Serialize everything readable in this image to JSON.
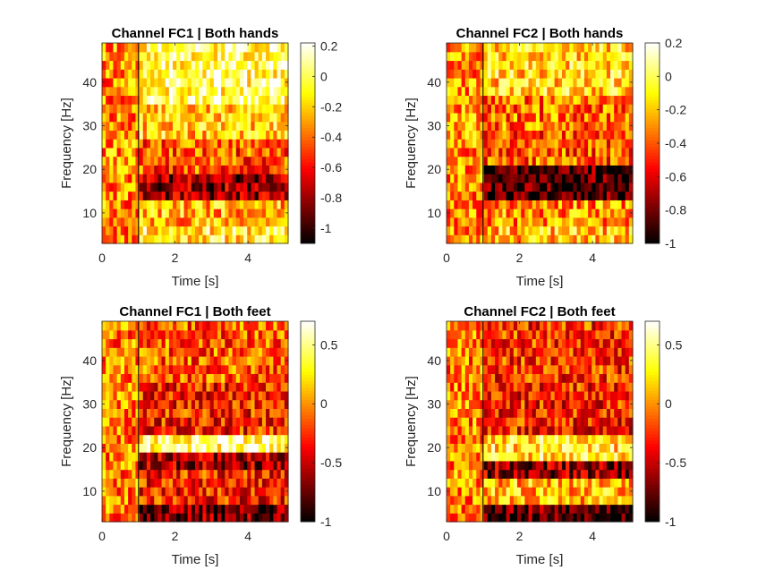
{
  "chart_data": [
    {
      "type": "heatmap",
      "title": "Channel FC1 | Both hands",
      "xlabel": "Time [s]",
      "ylabel": "Frequency [Hz]",
      "xlim": [
        0,
        5.1
      ],
      "ylim": [
        3,
        49
      ],
      "xticks": [
        0,
        2,
        4
      ],
      "yticks": [
        10,
        20,
        30,
        40
      ],
      "event_line_x": 1,
      "colormap": "hot",
      "clim": [
        -1.1,
        0.22
      ],
      "colorbar_ticks": [
        0.2,
        0,
        -0.2,
        -0.4,
        -0.6,
        -0.8,
        -1
      ],
      "bands": [
        {
          "f": [
            4,
            8
          ],
          "v": -0.1
        },
        {
          "f": [
            8,
            14
          ],
          "v": -0.25
        },
        {
          "f": [
            14,
            20
          ],
          "v": -0.8
        },
        {
          "f": [
            20,
            28
          ],
          "v": -0.45
        },
        {
          "f": [
            28,
            36
          ],
          "v": -0.2
        },
        {
          "f": [
            36,
            49
          ],
          "v": 0.0
        }
      ],
      "noise_seed": 11
    },
    {
      "type": "heatmap",
      "title": "Channel FC2 | Both hands",
      "xlabel": "Time [s]",
      "ylabel": "Frequency [Hz]",
      "xlim": [
        0,
        5.1
      ],
      "ylim": [
        3,
        49
      ],
      "xticks": [
        0,
        2,
        4
      ],
      "yticks": [
        10,
        20,
        30,
        40
      ],
      "event_line_x": 1,
      "colormap": "hot",
      "clim": [
        -1.0,
        0.2
      ],
      "colorbar_ticks": [
        0.2,
        0,
        -0.2,
        -0.4,
        -0.6,
        -0.8,
        -1
      ],
      "bands": [
        {
          "f": [
            4,
            8
          ],
          "v": -0.2
        },
        {
          "f": [
            8,
            14
          ],
          "v": -0.3
        },
        {
          "f": [
            14,
            22
          ],
          "v": -0.85
        },
        {
          "f": [
            22,
            30
          ],
          "v": -0.4
        },
        {
          "f": [
            30,
            38
          ],
          "v": -0.35
        },
        {
          "f": [
            38,
            49
          ],
          "v": -0.15
        }
      ],
      "noise_seed": 23
    },
    {
      "type": "heatmap",
      "title": "Channel FC1 | Both feet",
      "xlabel": "Time [s]",
      "ylabel": "Frequency [Hz]",
      "xlim": [
        0,
        5.1
      ],
      "ylim": [
        3,
        49
      ],
      "xticks": [
        0,
        2,
        4
      ],
      "yticks": [
        10,
        20,
        30,
        40
      ],
      "event_line_x": 1,
      "colormap": "hot",
      "clim": [
        -1.0,
        0.7
      ],
      "colorbar_ticks": [
        0.5,
        0,
        -0.5,
        -1
      ],
      "bands": [
        {
          "f": [
            4,
            8
          ],
          "v": -0.7
        },
        {
          "f": [
            8,
            15
          ],
          "v": -0.3
        },
        {
          "f": [
            15,
            20
          ],
          "v": -0.6
        },
        {
          "f": [
            20,
            24
          ],
          "v": 0.45
        },
        {
          "f": [
            24,
            36
          ],
          "v": -0.3
        },
        {
          "f": [
            36,
            49
          ],
          "v": -0.15
        }
      ],
      "noise_seed": 37
    },
    {
      "type": "heatmap",
      "title": "Channel FC2 | Both feet",
      "xlabel": "Time [s]",
      "ylabel": "Frequency [Hz]",
      "xlim": [
        0,
        5.1
      ],
      "ylim": [
        3,
        49
      ],
      "xticks": [
        0,
        2,
        4
      ],
      "yticks": [
        10,
        20,
        30,
        40
      ],
      "event_line_x": 1,
      "colormap": "hot",
      "clim": [
        -1.0,
        0.7
      ],
      "colorbar_ticks": [
        0.5,
        0,
        -0.5,
        -1
      ],
      "bands": [
        {
          "f": [
            4,
            8
          ],
          "v": -0.75
        },
        {
          "f": [
            8,
            14
          ],
          "v": 0.1
        },
        {
          "f": [
            14,
            18
          ],
          "v": -0.6
        },
        {
          "f": [
            18,
            24
          ],
          "v": 0.25
        },
        {
          "f": [
            24,
            36
          ],
          "v": -0.3
        },
        {
          "f": [
            36,
            49
          ],
          "v": -0.25
        }
      ],
      "noise_seed": 53
    }
  ]
}
